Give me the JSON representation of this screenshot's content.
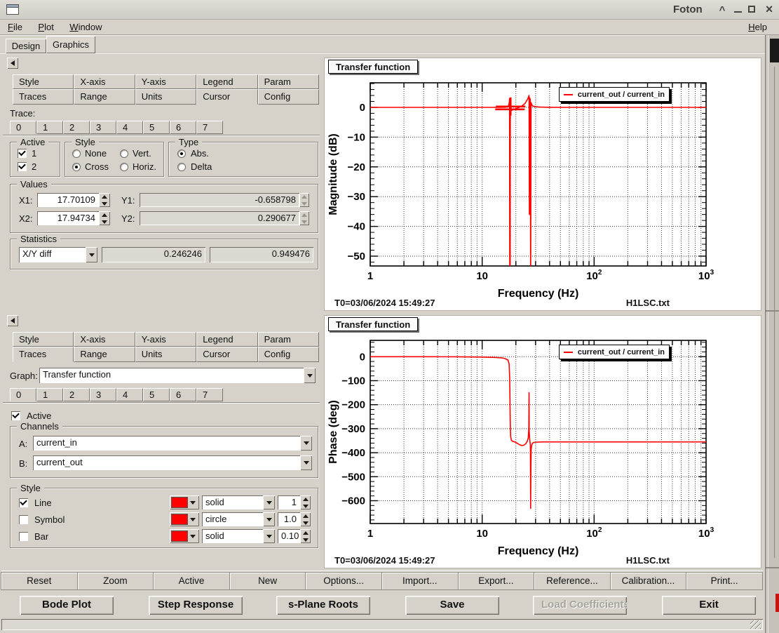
{
  "window": {
    "title": "Foton",
    "controls": {
      "shade": "^",
      "close": "×"
    }
  },
  "menubar": {
    "items": [
      "File",
      "Plot",
      "Window"
    ],
    "right_item": "Help"
  },
  "main_tabs": {
    "items": [
      "Design",
      "Graphics"
    ],
    "active": "Graphics"
  },
  "panel_tabs": {
    "row1": [
      "Style",
      "X-axis",
      "Y-axis",
      "Legend",
      "Param"
    ],
    "row2": [
      "Traces",
      "Range",
      "Units",
      "Cursor",
      "Config"
    ]
  },
  "trace_tabs": [
    "0",
    "1",
    "2",
    "3",
    "4",
    "5",
    "6",
    "7"
  ],
  "upper_panel": {
    "active_tab": "Cursor",
    "trace_label": "Trace:",
    "active_trace": "0",
    "groups": {
      "active": {
        "label": "Active",
        "item1": "1",
        "item2": "2",
        "checked1": true,
        "checked2": true
      },
      "style": {
        "label": "Style",
        "opt_none": "None",
        "opt_cross": "Cross",
        "opt_vert": "Vert.",
        "opt_horiz": "Horiz.",
        "selected": "Cross"
      },
      "type": {
        "label": "Type",
        "opt_abs": "Abs.",
        "opt_delta": "Delta",
        "selected": "Abs."
      },
      "values": {
        "label": "Values",
        "x1_label": "X1:",
        "x1": "17.70109",
        "y1_label": "Y1:",
        "y1": "-0.658798",
        "x2_label": "X2:",
        "x2": "17.94734",
        "y2_label": "Y2:",
        "y2": "0.290677"
      },
      "statistics": {
        "label": "Statistics",
        "mode": "X/Y diff",
        "value1": "0.246246",
        "value2": "0.949476"
      }
    }
  },
  "lower_panel": {
    "active_tab": "Traces",
    "graph_label": "Graph:",
    "graph_value": "Transfer function",
    "active_trace": "0",
    "active_label": "Active",
    "active_checked": true,
    "channels": {
      "label": "Channels",
      "a_label": "A:",
      "a_value": "current_in",
      "b_label": "B:",
      "b_value": "current_out"
    },
    "style": {
      "label": "Style",
      "rows": [
        {
          "label": "Line",
          "checked": true,
          "color": "#ff0000",
          "style": "solid",
          "size": "1"
        },
        {
          "label": "Symbol",
          "checked": false,
          "color": "#ff0000",
          "style": "circle",
          "size": "1.0"
        },
        {
          "label": "Bar",
          "checked": false,
          "color": "#ff0000",
          "style": "solid",
          "size": "0.10"
        }
      ]
    }
  },
  "toolbar": {
    "buttons": [
      "Reset",
      "Zoom",
      "Active",
      "New",
      "Options...",
      "Import...",
      "Export...",
      "Reference...",
      "Calibration...",
      "Print..."
    ]
  },
  "actions": {
    "buttons": [
      {
        "label": "Bode Plot",
        "disabled": false
      },
      {
        "label": "Step Response",
        "disabled": false
      },
      {
        "label": "s-Plane Roots",
        "disabled": false
      },
      {
        "label": "Save",
        "disabled": false
      },
      {
        "label": "Load Coefficients",
        "disabled": true
      },
      {
        "label": "Exit",
        "disabled": false
      }
    ]
  },
  "chart_data": [
    {
      "type": "line",
      "title": "Transfer function",
      "xlabel": "Frequency (Hz)",
      "ylabel": "Magnitude (dB)",
      "xscale": "log",
      "xlim": [
        1,
        1000
      ],
      "ylim": [
        -53.3,
        8.25
      ],
      "yticks": [
        0,
        -10,
        -20,
        -30,
        -40,
        -50
      ],
      "y_minor_step": 2,
      "xtick_labels": [
        {
          "f": 1,
          "t": "1"
        },
        {
          "f": 10,
          "t": "10"
        },
        {
          "f": 100,
          "t": "10^2"
        },
        {
          "f": 1000,
          "t": "10^3"
        }
      ],
      "grid": true,
      "legend_label": "current_out / current_in",
      "legend_position": "top-right",
      "footer_left": "T0=03/06/2024 15:49:27",
      "footer_right": "H1LSC.txt",
      "series": [
        {
          "name": "current_out / current_in",
          "color": "#ff0000",
          "points": [
            [
              1,
              0
            ],
            [
              5,
              0
            ],
            [
              10,
              0
            ],
            [
              14,
              0
            ],
            [
              16,
              0.05
            ],
            [
              17,
              0.2
            ],
            [
              17.4,
              1.2
            ],
            [
              17.55,
              3
            ],
            [
              17.65,
              -70
            ],
            [
              17.78,
              -70
            ],
            [
              17.85,
              2.5
            ],
            [
              18.05,
              -0.9
            ],
            [
              18.4,
              -1
            ],
            [
              19,
              -0.7
            ],
            [
              20,
              -0.4
            ],
            [
              21,
              -0.1
            ],
            [
              22.5,
              0.4
            ],
            [
              24,
              1.2
            ],
            [
              25.5,
              2.8
            ],
            [
              26.2,
              4
            ],
            [
              26.4,
              -36
            ],
            [
              26.55,
              3.2
            ],
            [
              26.9,
              2.6
            ],
            [
              27.1,
              -62
            ],
            [
              27.35,
              1.6
            ],
            [
              27.8,
              0.8
            ],
            [
              28.5,
              0.4
            ],
            [
              30,
              0.2
            ],
            [
              33,
              0.08
            ],
            [
              40,
              0.02
            ],
            [
              60,
              0
            ],
            [
              100,
              0
            ],
            [
              300,
              0
            ],
            [
              1000,
              0
            ]
          ]
        }
      ],
      "markers": [
        {
          "x": 17.70109,
          "y": -0.658798,
          "type": "cross",
          "color": "#ff0000"
        },
        {
          "x": 17.94734,
          "y": 0.290677,
          "type": "cross",
          "color": "#ff0000"
        }
      ]
    },
    {
      "type": "line",
      "title": "Transfer function",
      "xlabel": "Frequency (Hz)",
      "ylabel": "Phase (deg)",
      "xscale": "log",
      "xlim": [
        1,
        1000
      ],
      "ylim": [
        -695,
        68
      ],
      "yticks": [
        0,
        -100,
        -200,
        -300,
        -400,
        -500,
        -600
      ],
      "y_minor_step": 20,
      "xtick_labels": [
        {
          "f": 1,
          "t": "1"
        },
        {
          "f": 10,
          "t": "10"
        },
        {
          "f": 100,
          "t": "10^2"
        },
        {
          "f": 1000,
          "t": "10^3"
        }
      ],
      "grid": true,
      "legend_label": "current_out / current_in",
      "legend_position": "top-right",
      "footer_left": "T0=03/06/2024 15:49:27",
      "footer_right": "H1LSC.txt",
      "series": [
        {
          "name": "current_out / current_in",
          "color": "#ff0000",
          "points": [
            [
              1,
              0
            ],
            [
              3,
              0
            ],
            [
              6,
              -0.5
            ],
            [
              10,
              -1.5
            ],
            [
              13,
              -3
            ],
            [
              15,
              -5
            ],
            [
              16,
              -8
            ],
            [
              17,
              -14
            ],
            [
              17.4,
              -30
            ],
            [
              17.6,
              -90
            ],
            [
              17.7,
              -180
            ],
            [
              17.8,
              -270
            ],
            [
              17.95,
              -330
            ],
            [
              18.2,
              -347
            ],
            [
              18.6,
              -352
            ],
            [
              19.5,
              -355
            ],
            [
              20.5,
              -360
            ],
            [
              21.5,
              -366
            ],
            [
              22.5,
              -370
            ],
            [
              23.5,
              -369
            ],
            [
              24.5,
              -363
            ],
            [
              25.3,
              -352
            ],
            [
              25.8,
              -338
            ],
            [
              26.1,
              -300
            ],
            [
              26.2,
              -150
            ],
            [
              26.3,
              -310
            ],
            [
              26.6,
              -345
            ],
            [
              26.9,
              -365
            ],
            [
              27,
              -400
            ],
            [
              27.1,
              -632
            ],
            [
              27.25,
              -450
            ],
            [
              27.4,
              -385
            ],
            [
              27.7,
              -368
            ],
            [
              28.2,
              -360
            ],
            [
              29,
              -357
            ],
            [
              31,
              -356
            ],
            [
              35,
              -355
            ],
            [
              50,
              -355
            ],
            [
              100,
              -355
            ],
            [
              300,
              -355
            ],
            [
              1000,
              -355
            ]
          ]
        }
      ],
      "markers": []
    }
  ]
}
